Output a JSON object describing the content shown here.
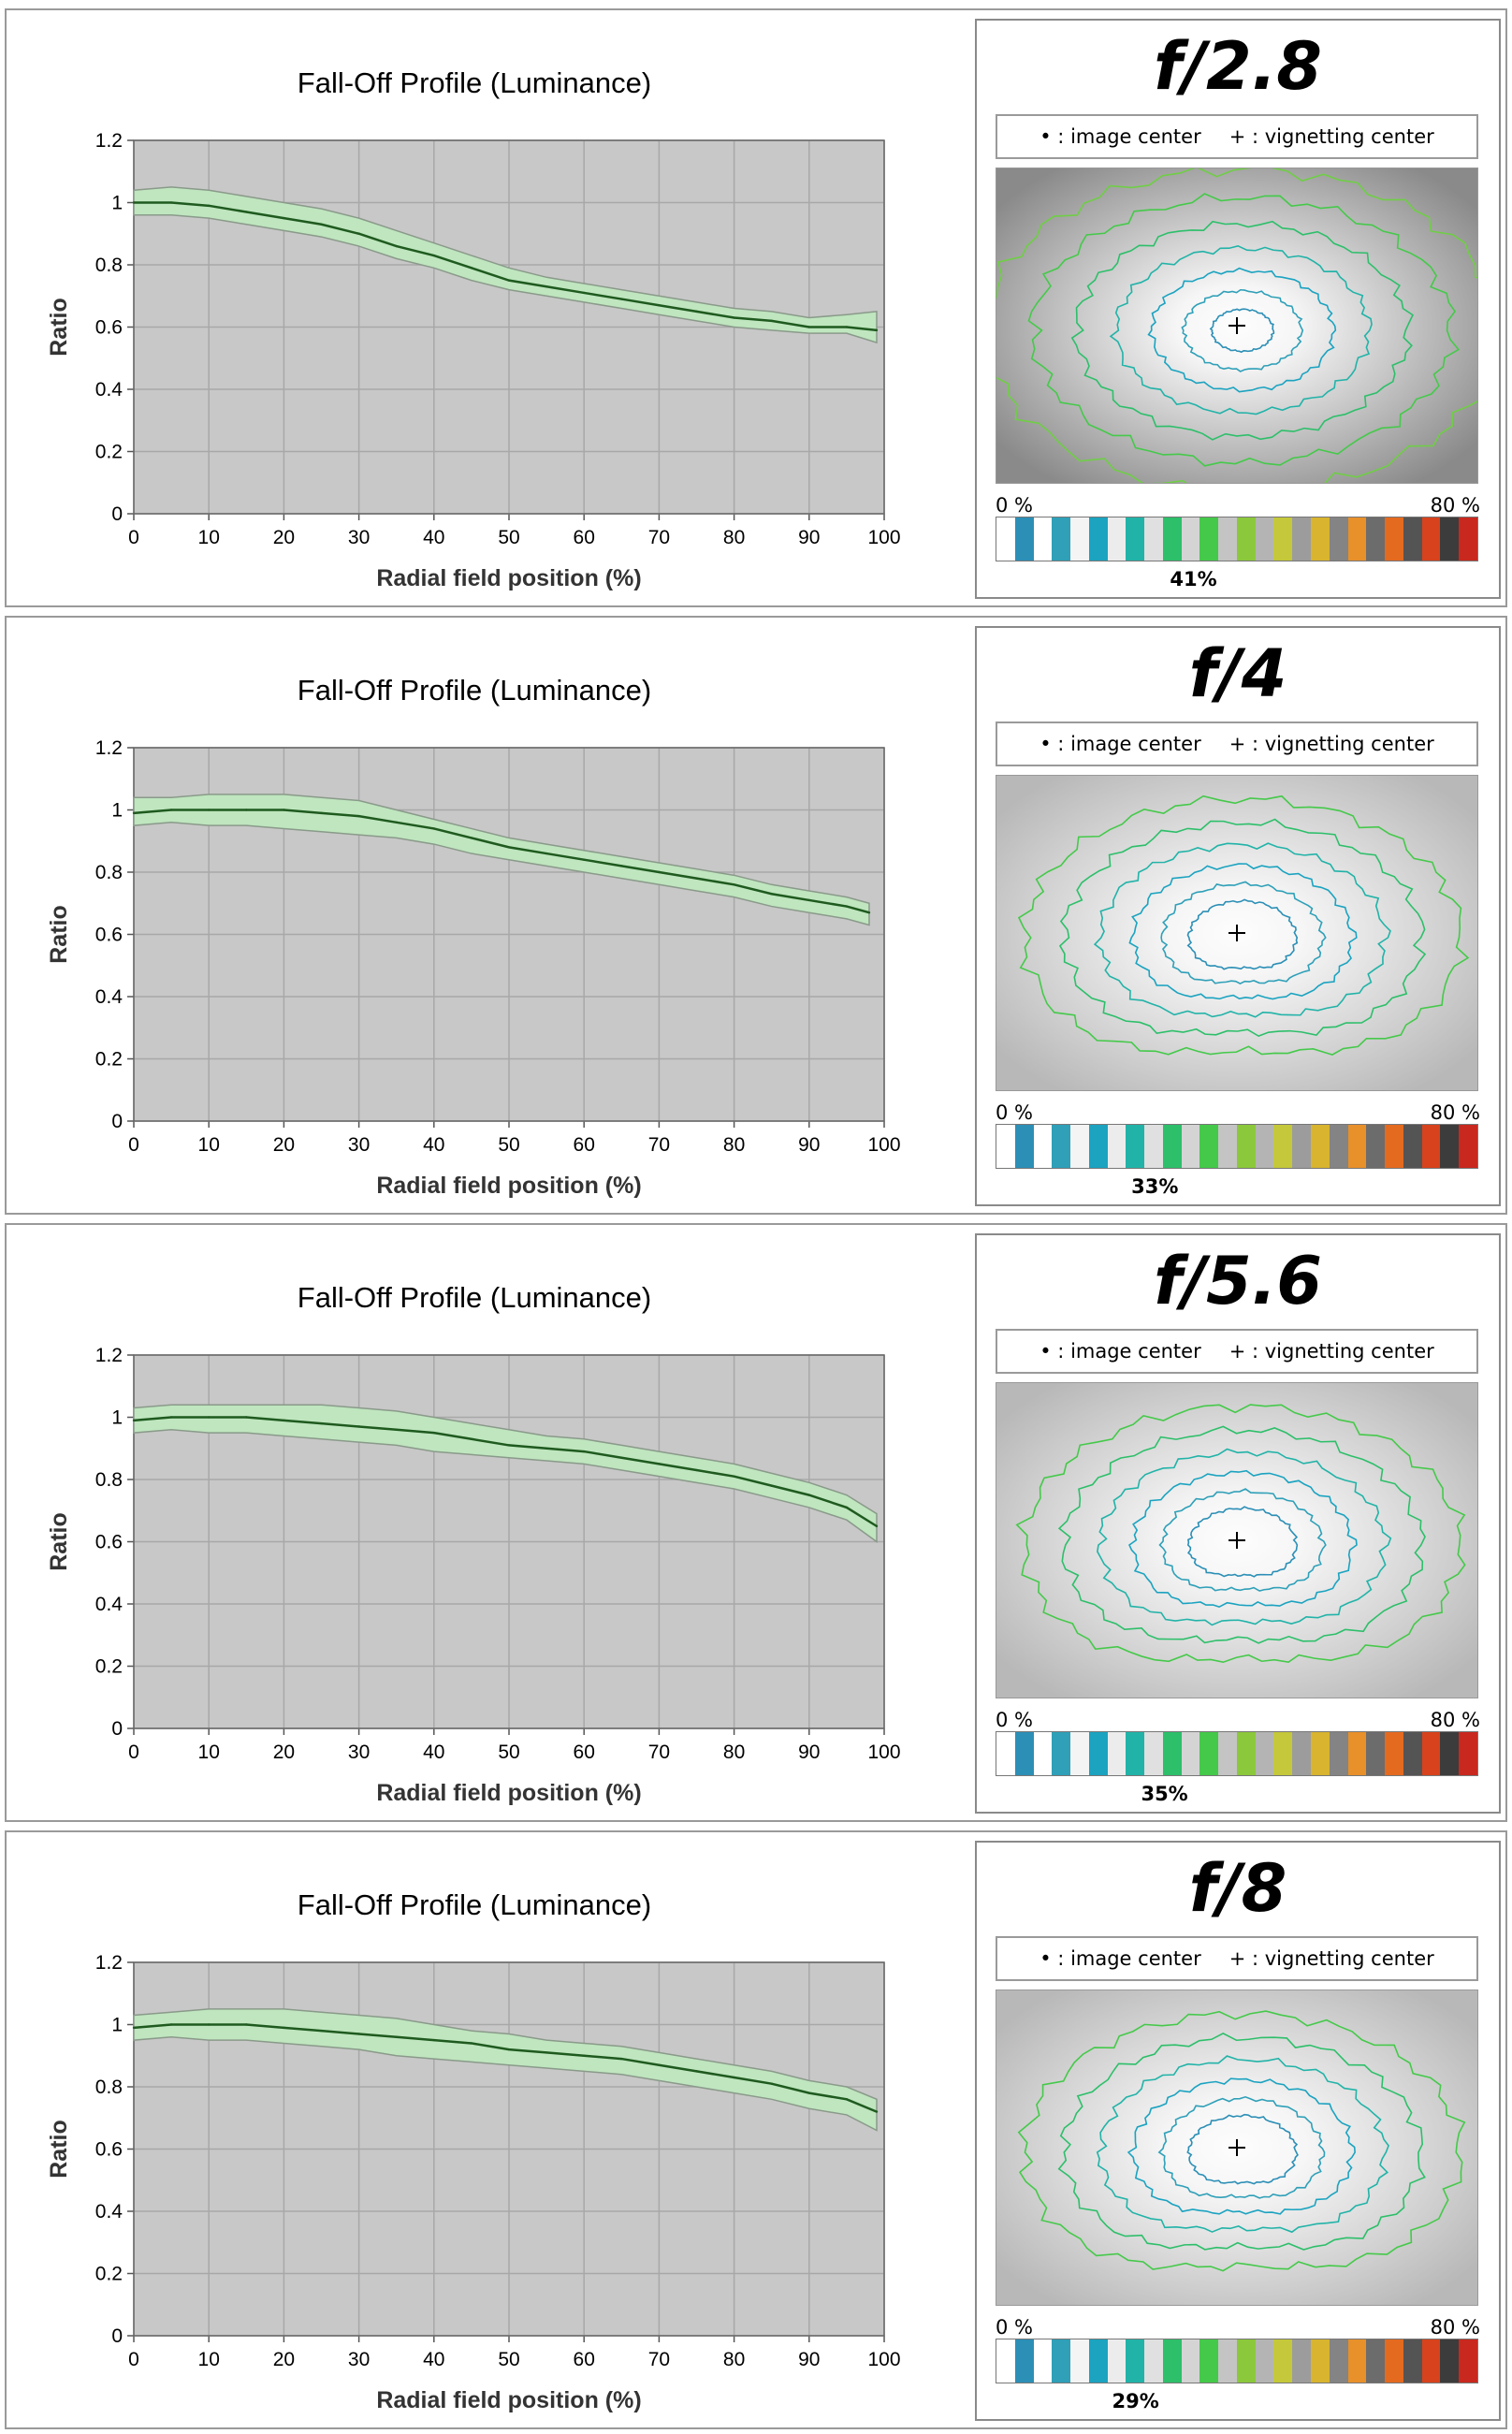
{
  "chart_common": {
    "title": "Fall-Off Profile (Luminance)",
    "xlabel": "Radial field position (%)",
    "ylabel": "Ratio",
    "xlim": [
      0,
      100
    ],
    "ylim": [
      0,
      1.2
    ],
    "x_ticks": [
      "0",
      "10",
      "20",
      "30",
      "40",
      "50",
      "60",
      "70",
      "80",
      "90",
      "100"
    ],
    "y_ticks": [
      "0",
      "0.2",
      "0.4",
      "0.6",
      "0.8",
      "1",
      "1.2"
    ],
    "grid": true
  },
  "vignetting_common": {
    "legend_image_center": "• : image center",
    "legend_vignetting_center": "+ : vignetting center",
    "scale_min_label": "0 %",
    "scale_max_label": "80 %"
  },
  "chart_data": [
    {
      "type": "area",
      "title": "Fall-Off Profile (Luminance)",
      "xlabel": "Radial field position (%)",
      "ylabel": "Ratio",
      "xlim": [
        0,
        100
      ],
      "ylim": [
        0,
        1.2
      ],
      "x": [
        0,
        5,
        10,
        15,
        20,
        25,
        30,
        35,
        40,
        45,
        50,
        55,
        60,
        65,
        70,
        75,
        80,
        85,
        90,
        95,
        99
      ],
      "series": [
        {
          "values": [
            1.0,
            1.0,
            0.99,
            0.97,
            0.95,
            0.93,
            0.9,
            0.86,
            0.83,
            0.79,
            0.75,
            0.73,
            0.71,
            0.69,
            0.67,
            0.65,
            0.63,
            0.62,
            0.6,
            0.6,
            0.59
          ]
        }
      ],
      "band_upper": [
        1.04,
        1.05,
        1.04,
        1.02,
        1.0,
        0.98,
        0.95,
        0.91,
        0.87,
        0.83,
        0.79,
        0.76,
        0.74,
        0.72,
        0.7,
        0.68,
        0.66,
        0.65,
        0.63,
        0.64,
        0.65
      ],
      "band_lower": [
        0.96,
        0.96,
        0.95,
        0.93,
        0.91,
        0.89,
        0.86,
        0.82,
        0.79,
        0.75,
        0.72,
        0.7,
        0.68,
        0.66,
        0.64,
        0.62,
        0.6,
        0.59,
        0.58,
        0.58,
        0.55
      ],
      "aperture": "f/2.8",
      "vignetting_percent": "41%",
      "vignetting_value": 41
    },
    {
      "type": "area",
      "title": "Fall-Off Profile (Luminance)",
      "xlabel": "Radial field position (%)",
      "ylabel": "Ratio",
      "xlim": [
        0,
        100
      ],
      "ylim": [
        0,
        1.2
      ],
      "x": [
        0,
        5,
        10,
        15,
        20,
        25,
        30,
        35,
        40,
        45,
        50,
        55,
        60,
        65,
        70,
        75,
        80,
        85,
        90,
        95,
        98
      ],
      "series": [
        {
          "values": [
            0.99,
            1.0,
            1.0,
            1.0,
            1.0,
            0.99,
            0.98,
            0.96,
            0.94,
            0.91,
            0.88,
            0.86,
            0.84,
            0.82,
            0.8,
            0.78,
            0.76,
            0.73,
            0.71,
            0.69,
            0.67
          ]
        }
      ],
      "band_upper": [
        1.04,
        1.04,
        1.05,
        1.05,
        1.05,
        1.04,
        1.03,
        1.0,
        0.97,
        0.94,
        0.91,
        0.89,
        0.87,
        0.85,
        0.83,
        0.81,
        0.79,
        0.76,
        0.74,
        0.72,
        0.7
      ],
      "band_lower": [
        0.95,
        0.96,
        0.95,
        0.95,
        0.94,
        0.93,
        0.92,
        0.91,
        0.89,
        0.86,
        0.84,
        0.82,
        0.8,
        0.78,
        0.76,
        0.74,
        0.72,
        0.69,
        0.67,
        0.65,
        0.63
      ],
      "aperture": "f/4",
      "vignetting_percent": "33%",
      "vignetting_value": 33
    },
    {
      "type": "area",
      "title": "Fall-Off Profile (Luminance)",
      "xlabel": "Radial field position (%)",
      "ylabel": "Ratio",
      "xlim": [
        0,
        100
      ],
      "ylim": [
        0,
        1.2
      ],
      "x": [
        0,
        5,
        10,
        15,
        20,
        25,
        30,
        35,
        40,
        45,
        50,
        55,
        60,
        65,
        70,
        75,
        80,
        85,
        90,
        95,
        99
      ],
      "series": [
        {
          "values": [
            0.99,
            1.0,
            1.0,
            1.0,
            0.99,
            0.98,
            0.97,
            0.96,
            0.95,
            0.93,
            0.91,
            0.9,
            0.89,
            0.87,
            0.85,
            0.83,
            0.81,
            0.78,
            0.75,
            0.71,
            0.65
          ]
        }
      ],
      "band_upper": [
        1.03,
        1.04,
        1.04,
        1.04,
        1.04,
        1.04,
        1.03,
        1.02,
        1.0,
        0.98,
        0.96,
        0.94,
        0.93,
        0.91,
        0.89,
        0.87,
        0.85,
        0.82,
        0.79,
        0.75,
        0.69
      ],
      "band_lower": [
        0.95,
        0.96,
        0.95,
        0.95,
        0.94,
        0.93,
        0.92,
        0.91,
        0.89,
        0.88,
        0.87,
        0.86,
        0.85,
        0.83,
        0.81,
        0.79,
        0.77,
        0.74,
        0.71,
        0.67,
        0.6
      ],
      "aperture": "f/5.6",
      "vignetting_percent": "35%",
      "vignetting_value": 35
    },
    {
      "type": "area",
      "title": "Fall-Off Profile (Luminance)",
      "xlabel": "Radial field position (%)",
      "ylabel": "Ratio",
      "xlim": [
        0,
        100
      ],
      "ylim": [
        0,
        1.2
      ],
      "x": [
        0,
        5,
        10,
        15,
        20,
        25,
        30,
        35,
        40,
        45,
        50,
        55,
        60,
        65,
        70,
        75,
        80,
        85,
        90,
        95,
        99
      ],
      "series": [
        {
          "values": [
            0.99,
            1.0,
            1.0,
            1.0,
            0.99,
            0.98,
            0.97,
            0.96,
            0.95,
            0.94,
            0.92,
            0.91,
            0.9,
            0.89,
            0.87,
            0.85,
            0.83,
            0.81,
            0.78,
            0.76,
            0.72
          ]
        }
      ],
      "band_upper": [
        1.03,
        1.04,
        1.05,
        1.05,
        1.05,
        1.04,
        1.03,
        1.02,
        1.0,
        0.98,
        0.97,
        0.95,
        0.94,
        0.93,
        0.91,
        0.89,
        0.87,
        0.85,
        0.82,
        0.8,
        0.76
      ],
      "band_lower": [
        0.95,
        0.96,
        0.95,
        0.95,
        0.94,
        0.93,
        0.92,
        0.9,
        0.89,
        0.88,
        0.87,
        0.86,
        0.85,
        0.84,
        0.82,
        0.8,
        0.78,
        0.76,
        0.73,
        0.71,
        0.66
      ],
      "aperture": "f/8",
      "vignetting_percent": "29%",
      "vignetting_value": 29
    }
  ],
  "colors": {
    "plot_background": "#c8c8c8",
    "grid": "#a8a8a8",
    "band_fill": "#bfe6bf",
    "band_edge": "#8a9a8a",
    "mean_line": "#1f5a1f",
    "scale_bands": [
      "#ffffff",
      "#2c8fb6",
      "#ffffff",
      "#2fa0b8",
      "#f4f4f4",
      "#1ba3c0",
      "#ececec",
      "#22b3a8",
      "#e0e0e0",
      "#2dbf6a",
      "#d4d4d4",
      "#45c94a",
      "#c4c4c4",
      "#8cc83c",
      "#b4b4b4",
      "#c4c83a",
      "#9c9c9c",
      "#d8b42f",
      "#848484",
      "#e8902a",
      "#6c6c6c",
      "#e46a20",
      "#545454",
      "#d8421c",
      "#3c3c3c",
      "#c8281e"
    ]
  }
}
